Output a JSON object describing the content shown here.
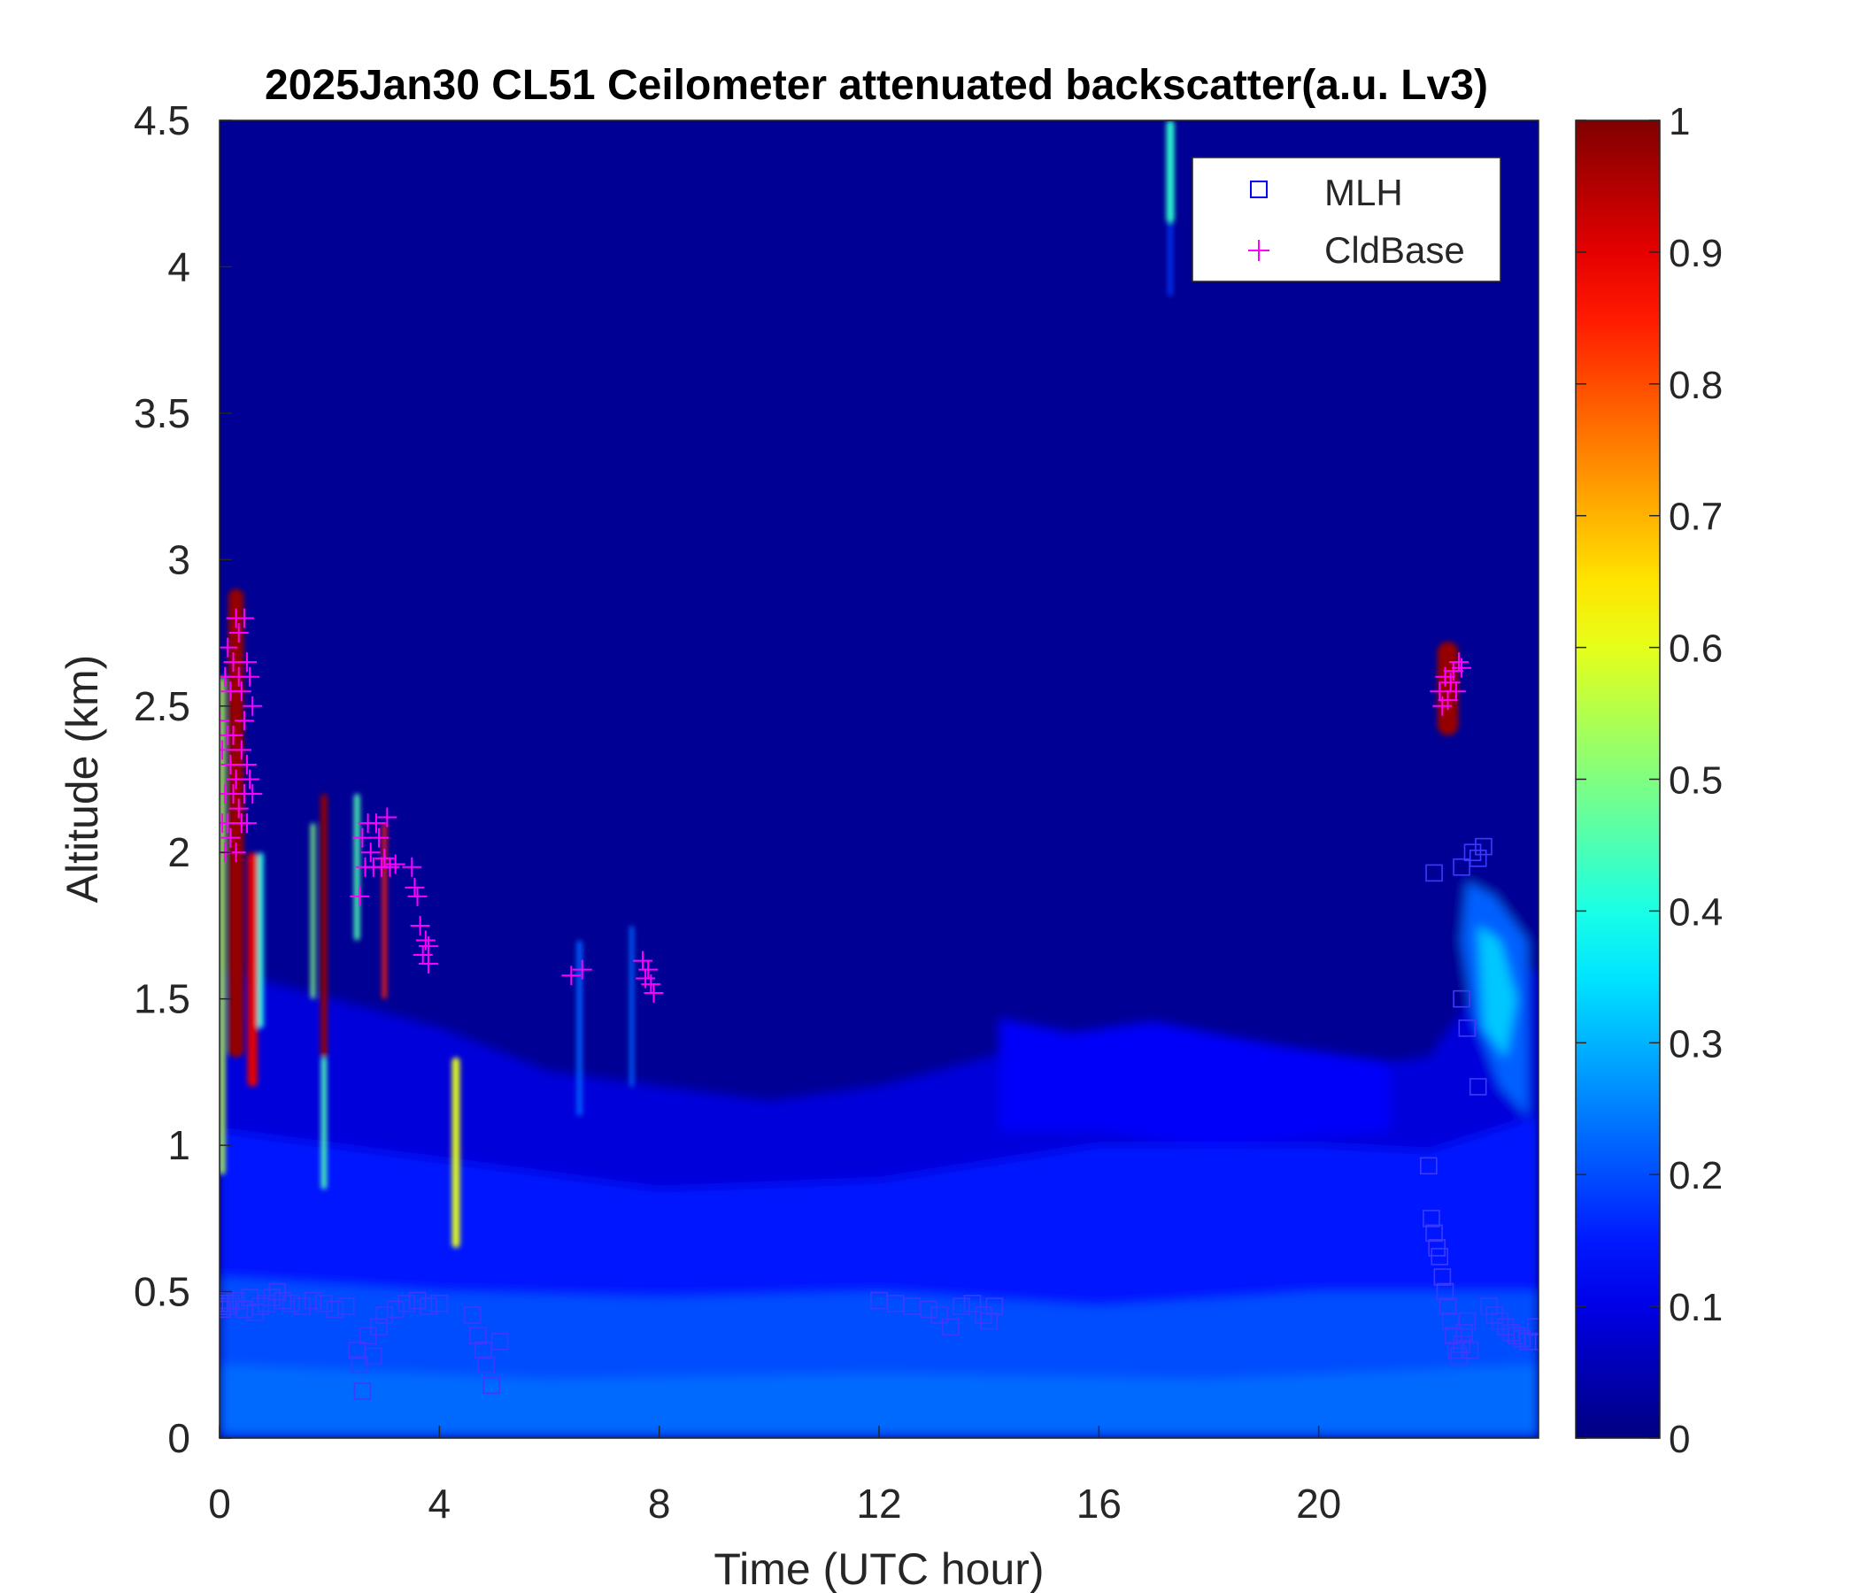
{
  "chart_data": {
    "type": "heatmap",
    "title": "2025Jan30 CL51 Ceilometer attenuated backscatter(a.u. Lv3)",
    "xlabel": "Time (UTC hour)",
    "ylabel": "Altitude (km)",
    "xlim": [
      0,
      24
    ],
    "ylim": [
      0,
      4.5
    ],
    "x_ticks": [
      0,
      4,
      8,
      12,
      16,
      20
    ],
    "x_tick_labels": [
      "0",
      "4",
      "8",
      "12",
      "16",
      "20"
    ],
    "y_ticks": [
      0,
      0.5,
      1,
      1.5,
      2,
      2.5,
      3,
      3.5,
      4,
      4.5
    ],
    "y_tick_labels": [
      "0",
      "0.5",
      "1",
      "1.5",
      "2",
      "2.5",
      "3",
      "3.5",
      "4",
      "4.5"
    ],
    "colorbar": {
      "colormap": "jet",
      "range": [
        0,
        1
      ],
      "ticks": [
        0,
        0.1,
        0.2,
        0.3,
        0.4,
        0.5,
        0.6,
        0.7,
        0.8,
        0.9,
        1
      ],
      "tick_labels": [
        "0",
        "0.1",
        "0.2",
        "0.3",
        "0.4",
        "0.5",
        "0.6",
        "0.7",
        "0.8",
        "0.9",
        "1"
      ]
    },
    "legend": {
      "placement": "top-right",
      "entries": [
        {
          "label": "MLH",
          "marker": "square",
          "color": "#0000ff"
        },
        {
          "label": "CldBase",
          "marker": "plus",
          "color": "#ff00ff"
        }
      ]
    },
    "background_layers": [
      {
        "value": 0.02,
        "path": [
          [
            0,
            4.5
          ],
          [
            24,
            4.5
          ],
          [
            24,
            1.6
          ],
          [
            23,
            1.55
          ],
          [
            22,
            1.3
          ],
          [
            20,
            1.25
          ],
          [
            18,
            1.28
          ],
          [
            16,
            1.35
          ],
          [
            14,
            1.3
          ],
          [
            12,
            1.2
          ],
          [
            10,
            1.15
          ],
          [
            8,
            1.2
          ],
          [
            6,
            1.25
          ],
          [
            4,
            1.4
          ],
          [
            2,
            1.5
          ],
          [
            0,
            1.6
          ]
        ]
      },
      {
        "value": 0.09,
        "path": [
          [
            0,
            1.6
          ],
          [
            2,
            1.5
          ],
          [
            4,
            1.4
          ],
          [
            6,
            1.25
          ],
          [
            8,
            1.2
          ],
          [
            10,
            1.15
          ],
          [
            12,
            1.2
          ],
          [
            14,
            1.3
          ],
          [
            16,
            1.35
          ],
          [
            18,
            1.28
          ],
          [
            20,
            1.25
          ],
          [
            22,
            1.3
          ],
          [
            23,
            1.55
          ],
          [
            24,
            1.6
          ],
          [
            24,
            0
          ],
          [
            0,
            0
          ]
        ]
      },
      {
        "value": 0.12,
        "path": [
          [
            14.2,
            1.43
          ],
          [
            15.5,
            1.38
          ],
          [
            17,
            1.42
          ],
          [
            18.3,
            1.37
          ],
          [
            19.5,
            1.33
          ],
          [
            21.3,
            1.28
          ],
          [
            21.3,
            1.05
          ],
          [
            18,
            1.0
          ],
          [
            16,
            1.05
          ],
          [
            14.2,
            1.05
          ]
        ]
      },
      {
        "value": 0.15,
        "path": [
          [
            0,
            1.05
          ],
          [
            2,
            1.0
          ],
          [
            4,
            0.95
          ],
          [
            8,
            0.85
          ],
          [
            12,
            0.88
          ],
          [
            16,
            1.0
          ],
          [
            20,
            1.0
          ],
          [
            22,
            0.98
          ],
          [
            24,
            1.1
          ],
          [
            24,
            0
          ],
          [
            0,
            0
          ]
        ]
      },
      {
        "value": 0.2,
        "path": [
          [
            0,
            0.55
          ],
          [
            4,
            0.5
          ],
          [
            8,
            0.48
          ],
          [
            12,
            0.5
          ],
          [
            16,
            0.45
          ],
          [
            20,
            0.5
          ],
          [
            24,
            0.5
          ],
          [
            24,
            0
          ],
          [
            0,
            0
          ]
        ]
      },
      {
        "value": 0.23,
        "path": [
          [
            0,
            0.25
          ],
          [
            6,
            0.2
          ],
          [
            12,
            0.22
          ],
          [
            18,
            0.2
          ],
          [
            24,
            0.25
          ],
          [
            24,
            0.02
          ],
          [
            0,
            0.02
          ]
        ]
      },
      {
        "value": 0.22,
        "path": [
          [
            22.7,
            1.9
          ],
          [
            23.2,
            1.85
          ],
          [
            23.8,
            1.7
          ],
          [
            23.8,
            1.1
          ],
          [
            23.3,
            1.2
          ],
          [
            22.8,
            1.45
          ],
          [
            22.6,
            1.7
          ]
        ]
      },
      {
        "value": 0.32,
        "path": [
          [
            22.9,
            1.75
          ],
          [
            23.3,
            1.7
          ],
          [
            23.6,
            1.5
          ],
          [
            23.4,
            1.3
          ],
          [
            23.0,
            1.4
          ]
        ]
      }
    ],
    "plumes": [
      {
        "x": 0.3,
        "y0": 1.3,
        "y1": 2.9,
        "w": 0.28,
        "value": 0.98
      },
      {
        "x": 0.05,
        "y0": 0.9,
        "y1": 2.6,
        "w": 0.1,
        "value": 0.55
      },
      {
        "x": 0.6,
        "y0": 1.2,
        "y1": 2.0,
        "w": 0.18,
        "value": 0.9
      },
      {
        "x": 0.75,
        "y0": 1.4,
        "y1": 2.0,
        "w": 0.1,
        "value": 0.4
      },
      {
        "x": 1.9,
        "y0": 1.3,
        "y1": 2.2,
        "w": 0.12,
        "value": 0.98
      },
      {
        "x": 1.9,
        "y0": 0.85,
        "y1": 1.3,
        "w": 0.1,
        "value": 0.45
      },
      {
        "x": 1.7,
        "y0": 1.5,
        "y1": 2.1,
        "w": 0.08,
        "value": 0.5
      },
      {
        "x": 2.5,
        "y0": 1.7,
        "y1": 2.2,
        "w": 0.1,
        "value": 0.45
      },
      {
        "x": 3.0,
        "y0": 1.5,
        "y1": 2.1,
        "w": 0.08,
        "value": 0.85
      },
      {
        "x": 4.3,
        "y0": 0.65,
        "y1": 1.3,
        "w": 0.14,
        "value": 0.6
      },
      {
        "x": 6.55,
        "y0": 1.1,
        "y1": 1.7,
        "w": 0.1,
        "value": 0.22
      },
      {
        "x": 7.5,
        "y0": 1.2,
        "y1": 1.75,
        "w": 0.08,
        "value": 0.22
      },
      {
        "x": 22.35,
        "y0": 2.4,
        "y1": 2.72,
        "w": 0.38,
        "value": 0.98
      },
      {
        "x": 17.3,
        "y0": 4.15,
        "y1": 4.5,
        "w": 0.14,
        "value": 0.42
      },
      {
        "x": 17.3,
        "y0": 3.9,
        "y1": 4.15,
        "w": 0.08,
        "value": 0.18
      }
    ],
    "series": [
      {
        "name": "MLH",
        "marker": "square",
        "x": [
          0.0,
          0.05,
          0.1,
          0.15,
          0.2,
          0.3,
          0.45,
          0.55,
          0.65,
          0.75,
          0.85,
          0.95,
          1.05,
          1.15,
          1.3,
          1.5,
          1.7,
          1.9,
          2.1,
          2.3,
          2.5,
          2.55,
          2.6,
          2.7,
          2.8,
          2.9,
          3.0,
          3.2,
          3.4,
          3.6,
          3.8,
          4.0,
          4.6,
          4.7,
          4.8,
          4.85,
          4.95,
          5.1,
          12.0,
          12.3,
          12.6,
          12.9,
          13.1,
          13.3,
          13.5,
          13.7,
          13.9,
          14.0,
          14.1,
          22.0,
          22.05,
          22.1,
          22.15,
          22.2,
          22.25,
          22.3,
          22.35,
          22.4,
          22.45,
          22.5,
          22.55,
          22.6,
          22.65,
          22.7,
          22.75,
          22.6,
          22.7,
          22.8,
          22.9,
          23.0,
          22.1,
          22.6,
          22.9,
          23.1,
          23.2,
          23.3,
          23.4,
          23.5,
          23.6,
          23.7,
          23.8,
          23.9,
          23.95
        ],
        "y": [
          0.46,
          0.44,
          0.47,
          0.45,
          0.46,
          0.47,
          0.44,
          0.48,
          0.43,
          0.45,
          0.46,
          0.48,
          0.5,
          0.47,
          0.46,
          0.45,
          0.47,
          0.46,
          0.44,
          0.45,
          0.3,
          0.25,
          0.16,
          0.35,
          0.28,
          0.38,
          0.42,
          0.44,
          0.46,
          0.47,
          0.45,
          0.46,
          0.42,
          0.35,
          0.3,
          0.25,
          0.18,
          0.33,
          0.47,
          0.46,
          0.45,
          0.44,
          0.42,
          0.38,
          0.45,
          0.46,
          0.42,
          0.4,
          0.45,
          0.93,
          0.75,
          0.7,
          0.65,
          0.62,
          0.55,
          0.5,
          0.45,
          0.4,
          0.35,
          0.3,
          0.28,
          0.32,
          0.36,
          0.4,
          0.3,
          1.5,
          1.4,
          2.0,
          1.98,
          2.02,
          1.93,
          1.95,
          1.2,
          0.45,
          0.42,
          0.4,
          0.38,
          0.36,
          0.35,
          0.34,
          0.33,
          0.33,
          0.38
        ]
      },
      {
        "name": "CldBase",
        "marker": "plus",
        "x": [
          0.0,
          0.05,
          0.05,
          0.1,
          0.1,
          0.1,
          0.15,
          0.15,
          0.15,
          0.2,
          0.2,
          0.2,
          0.25,
          0.25,
          0.25,
          0.3,
          0.3,
          0.3,
          0.35,
          0.35,
          0.35,
          0.4,
          0.4,
          0.4,
          0.45,
          0.45,
          0.45,
          0.5,
          0.5,
          0.5,
          0.55,
          0.55,
          0.6,
          0.6,
          2.55,
          2.6,
          2.65,
          2.7,
          2.75,
          2.8,
          2.85,
          2.9,
          2.95,
          3.0,
          3.05,
          3.1,
          3.2,
          3.5,
          3.55,
          3.6,
          3.65,
          3.7,
          3.75,
          3.8,
          3.8,
          6.4,
          6.6,
          7.7,
          7.75,
          7.8,
          7.85,
          7.9,
          22.2,
          22.25,
          22.3,
          22.35,
          22.4,
          22.45,
          22.5,
          22.55,
          22.6
        ],
        "y": [
          2.45,
          2.1,
          2.35,
          2.2,
          2.6,
          2.0,
          2.4,
          2.1,
          2.7,
          2.3,
          2.55,
          2.05,
          2.65,
          2.2,
          2.4,
          2.8,
          2.25,
          2.0,
          2.6,
          2.15,
          2.75,
          2.35,
          2.1,
          2.55,
          2.2,
          2.8,
          2.45,
          2.3,
          2.1,
          2.65,
          2.25,
          2.6,
          2.2,
          2.5,
          1.85,
          2.05,
          1.95,
          2.1,
          2.0,
          1.95,
          2.1,
          2.05,
          1.95,
          1.98,
          2.12,
          1.95,
          1.96,
          1.95,
          1.88,
          1.85,
          1.75,
          1.65,
          1.7,
          1.68,
          1.62,
          1.58,
          1.6,
          1.63,
          1.57,
          1.6,
          1.55,
          1.52,
          2.55,
          2.5,
          2.6,
          2.52,
          2.58,
          2.62,
          2.55,
          2.65,
          2.63
        ]
      }
    ]
  }
}
